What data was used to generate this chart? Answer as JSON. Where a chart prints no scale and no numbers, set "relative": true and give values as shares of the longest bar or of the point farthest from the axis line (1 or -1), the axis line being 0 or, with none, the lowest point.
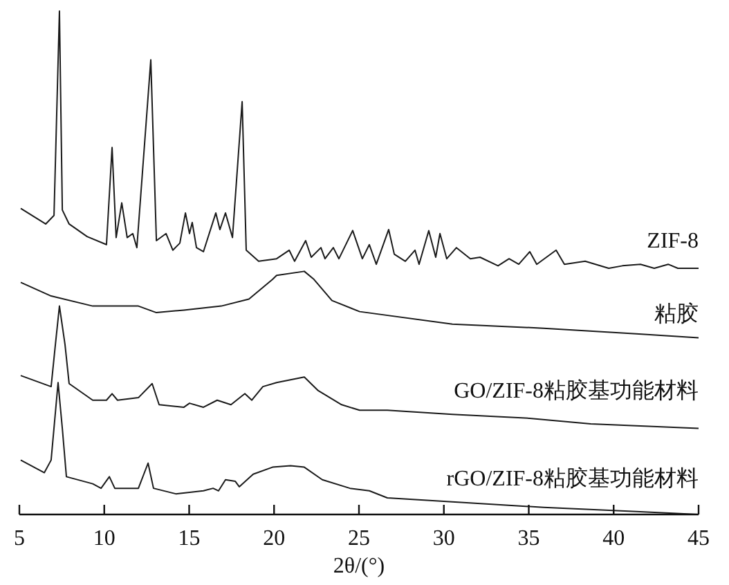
{
  "chart_data": {
    "type": "line",
    "relative": true,
    "xlabel": "2θ/(°)",
    "xlim": [
      5,
      45
    ],
    "xticks": [
      5,
      10,
      15,
      20,
      25,
      30,
      35,
      40,
      45
    ],
    "legend": false,
    "grid": false,
    "marker": "none",
    "line_style": "solid",
    "series": [
      {
        "name": "ZIF-8",
        "color": "#1a1a1a",
        "x": [
          5.08,
          6.55,
          7.04,
          7.36,
          7.53,
          7.93,
          8.99,
          10.13,
          10.46,
          10.7,
          11.03,
          11.35,
          11.68,
          11.92,
          12.74,
          13.07,
          13.64,
          14.04,
          14.45,
          14.78,
          15.02,
          15.18,
          15.43,
          15.84,
          16.57,
          16.81,
          17.14,
          17.55,
          18.12,
          18.36,
          19.09,
          20.15,
          20.89,
          21.21,
          21.86,
          22.19,
          22.76,
          23.0,
          23.49,
          23.82,
          24.63,
          25.2,
          25.61,
          26.02,
          26.75,
          27.08,
          27.73,
          28.3,
          28.54,
          29.11,
          29.52,
          29.77,
          30.17,
          30.74,
          31.56,
          32.13,
          33.19,
          33.84,
          34.41,
          35.06,
          35.47,
          36.61,
          37.1,
          38.32,
          39.71,
          40.52,
          41.58,
          42.39,
          43.21,
          43.78,
          45.0
        ],
        "values": [
          0.608,
          0.577,
          0.594,
          1,
          0.605,
          0.577,
          0.552,
          0.536,
          0.729,
          0.55,
          0.619,
          0.55,
          0.558,
          0.53,
          0.903,
          0.544,
          0.558,
          0.525,
          0.539,
          0.599,
          0.558,
          0.58,
          0.53,
          0.522,
          0.599,
          0.566,
          0.599,
          0.55,
          0.82,
          0.525,
          0.503,
          0.508,
          0.525,
          0.503,
          0.544,
          0.511,
          0.53,
          0.508,
          0.53,
          0.508,
          0.564,
          0.508,
          0.536,
          0.497,
          0.566,
          0.517,
          0.503,
          0.525,
          0.497,
          0.564,
          0.511,
          0.558,
          0.508,
          0.53,
          0.508,
          0.511,
          0.494,
          0.508,
          0.497,
          0.522,
          0.497,
          0.525,
          0.497,
          0.503,
          0.489,
          0.494,
          0.497,
          0.489,
          0.497,
          0.489,
          0.489
        ]
      },
      {
        "name": "粘胶",
        "color": "#1a1a1a",
        "x": [
          5.08,
          6.87,
          9.32,
          12.01,
          13.07,
          14.69,
          16.89,
          18.52,
          19.91,
          20.15,
          21.78,
          22.35,
          23.41,
          25.04,
          30.5,
          35.88,
          41.33,
          45.0
        ],
        "values": [
          0.461,
          0.434,
          0.414,
          0.414,
          0.401,
          0.406,
          0.414,
          0.428,
          0.467,
          0.475,
          0.483,
          0.467,
          0.425,
          0.403,
          0.378,
          0.37,
          0.359,
          0.351
        ]
      },
      {
        "name": "GO/ZIF-8粘胶基功能材料",
        "color": "#1a1a1a",
        "x": [
          5.08,
          6.87,
          7.12,
          7.36,
          7.69,
          7.93,
          9.32,
          10.13,
          10.46,
          10.78,
          12.01,
          12.82,
          13.23,
          14.69,
          15.02,
          15.84,
          16.65,
          17.46,
          18.28,
          18.69,
          19.34,
          20.15,
          21.78,
          22.6,
          23.98,
          25.04,
          26.67,
          30.5,
          35.06,
          38.65,
          45.0
        ],
        "values": [
          0.276,
          0.254,
          0.337,
          0.414,
          0.337,
          0.26,
          0.227,
          0.227,
          0.24,
          0.227,
          0.232,
          0.26,
          0.218,
          0.213,
          0.221,
          0.213,
          0.227,
          0.218,
          0.24,
          0.227,
          0.254,
          0.262,
          0.273,
          0.246,
          0.218,
          0.207,
          0.207,
          0.199,
          0.191,
          0.18,
          0.171
        ]
      },
      {
        "name": "rGO/ZIF-8粘胶基功能材料",
        "color": "#1a1a1a",
        "x": [
          5.08,
          6.47,
          6.87,
          7.28,
          7.53,
          7.77,
          9.32,
          9.81,
          10.3,
          10.62,
          12.01,
          12.58,
          12.9,
          14.21,
          15.84,
          16.41,
          16.73,
          17.14,
          17.71,
          17.95,
          18.77,
          19.91,
          20.97,
          21.78,
          22.84,
          24.47,
          25.61,
          26.67,
          30.5,
          35.88,
          41.33,
          45.0
        ],
        "values": [
          0.108,
          0.083,
          0.108,
          0.262,
          0.171,
          0.075,
          0.061,
          0.052,
          0.075,
          0.052,
          0.052,
          0.102,
          0.052,
          0.041,
          0.047,
          0.052,
          0.047,
          0.069,
          0.066,
          0.055,
          0.08,
          0.094,
          0.097,
          0.094,
          0.069,
          0.052,
          0.047,
          0.033,
          0.025,
          0.014,
          0.006,
          0
        ]
      }
    ]
  }
}
